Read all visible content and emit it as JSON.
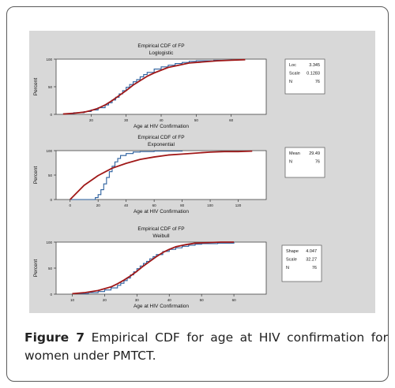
{
  "caption": {
    "label": "Figure 7",
    "text": "Empirical CDF for age at HIV confirmation for women under PMTCT."
  },
  "colors": {
    "empirical": "#2a5f9e",
    "fitted": "#a01818",
    "panel_bg": "#d8d8d8",
    "plot_bg": "#ffffff"
  },
  "chart_data": [
    {
      "type": "line",
      "title": "Empirical CDF of FP",
      "subtitle": "Loglogistic",
      "xlabel": "Age at HIV Confirmation",
      "ylabel": "Percent",
      "xlim": [
        10,
        70
      ],
      "ylim": [
        0,
        100
      ],
      "x_ticks": [
        20,
        30,
        40,
        50,
        60
      ],
      "x_tick_labels": [
        "20",
        "30",
        "40",
        "50",
        "60"
      ],
      "y_ticks": [
        0,
        50,
        100
      ],
      "y_tick_labels": [
        "0",
        "50",
        "100"
      ],
      "legend_position": "right",
      "legend": [
        {
          "label": "Loc",
          "value": "3.345"
        },
        {
          "label": "Scale",
          "value": "0.1283"
        },
        {
          "label": "N",
          "value": "76"
        }
      ],
      "series": [
        {
          "kind": "empirical",
          "x": [
            12,
            15,
            18,
            20,
            22,
            24,
            25,
            26,
            27,
            28,
            29,
            30,
            31,
            32,
            33,
            34,
            35,
            36,
            38,
            40,
            42,
            44,
            46,
            48,
            50,
            55,
            60
          ],
          "y": [
            1,
            3,
            5,
            8,
            12,
            17,
            21,
            26,
            31,
            37,
            43,
            49,
            54,
            59,
            63,
            68,
            72,
            76,
            82,
            86,
            89,
            92,
            94,
            96,
            97,
            98,
            100
          ]
        },
        {
          "kind": "fitted",
          "x": [
            12,
            15,
            18,
            20,
            22,
            24,
            26,
            28,
            30,
            32,
            34,
            36,
            38,
            40,
            42,
            45,
            48,
            52,
            56,
            60,
            64
          ],
          "y": [
            0.6,
            2,
            4,
            7,
            11,
            17,
            25,
            34,
            43,
            53,
            61,
            69,
            75,
            80,
            85,
            89,
            93,
            95,
            97,
            98,
            99
          ]
        }
      ]
    },
    {
      "type": "line",
      "title": "Empirical CDF of FP",
      "subtitle": "Exponential",
      "xlabel": "Age at HIV Confirmation",
      "ylabel": "Percent",
      "xlim": [
        -10,
        140
      ],
      "ylim": [
        0,
        100
      ],
      "x_ticks": [
        0,
        20,
        40,
        60,
        80,
        100,
        120
      ],
      "x_tick_labels": [
        "0",
        "20",
        "40",
        "60",
        "80",
        "100",
        "120"
      ],
      "y_ticks": [
        0,
        50,
        100
      ],
      "y_tick_labels": [
        "0",
        "50",
        "100"
      ],
      "legend_position": "right",
      "legend": [
        {
          "label": "Mean",
          "value": "29.49"
        },
        {
          "label": "N",
          "value": "76"
        }
      ],
      "series": [
        {
          "kind": "empirical",
          "x": [
            0,
            16,
            18,
            20,
            22,
            24,
            26,
            28,
            30,
            32,
            34,
            36,
            40,
            45,
            50,
            60,
            80
          ],
          "y": [
            0,
            0,
            4,
            10,
            20,
            32,
            45,
            57,
            68,
            77,
            84,
            90,
            94,
            97,
            98,
            99,
            100
          ]
        },
        {
          "kind": "fitted",
          "x": [
            0,
            10,
            20,
            30,
            40,
            50,
            60,
            70,
            80,
            90,
            100,
            110,
            120,
            130
          ],
          "y": [
            0,
            29,
            49,
            64,
            74,
            82,
            87,
            91,
            93,
            95,
            97,
            98,
            98,
            99
          ]
        }
      ]
    },
    {
      "type": "line",
      "title": "Empirical CDF of FP",
      "subtitle": "Weibull",
      "xlabel": "Age at HIV Confirmation",
      "ylabel": "Percent",
      "xlim": [
        5,
        70
      ],
      "ylim": [
        0,
        100
      ],
      "x_ticks": [
        10,
        20,
        30,
        40,
        50,
        60
      ],
      "x_tick_labels": [
        "10",
        "20",
        "30",
        "40",
        "50",
        "60"
      ],
      "y_ticks": [
        0,
        50,
        100
      ],
      "y_tick_labels": [
        "0",
        "50",
        "100"
      ],
      "legend_position": "right",
      "legend": [
        {
          "label": "Shape",
          "value": "4.047"
        },
        {
          "label": "Scale",
          "value": "32.27"
        },
        {
          "label": "N",
          "value": "76"
        }
      ],
      "series": [
        {
          "kind": "empirical",
          "x": [
            12,
            15,
            18,
            20,
            22,
            24,
            25,
            26,
            27,
            28,
            29,
            30,
            31,
            32,
            33,
            34,
            35,
            36,
            38,
            40,
            42,
            44,
            46,
            48,
            50,
            55,
            60
          ],
          "y": [
            1,
            3,
            5,
            8,
            12,
            17,
            21,
            26,
            31,
            37,
            43,
            49,
            54,
            59,
            63,
            68,
            72,
            76,
            82,
            86,
            89,
            92,
            94,
            96,
            97,
            98,
            100
          ]
        },
        {
          "kind": "fitted",
          "x": [
            10,
            14,
            18,
            22,
            24,
            26,
            28,
            30,
            32,
            34,
            36,
            38,
            40,
            42,
            45,
            48,
            52,
            56,
            60
          ],
          "y": [
            1,
            3,
            7,
            14,
            20,
            27,
            35,
            44,
            54,
            63,
            72,
            80,
            86,
            91,
            95,
            98,
            99,
            100,
            100
          ]
        }
      ]
    }
  ]
}
